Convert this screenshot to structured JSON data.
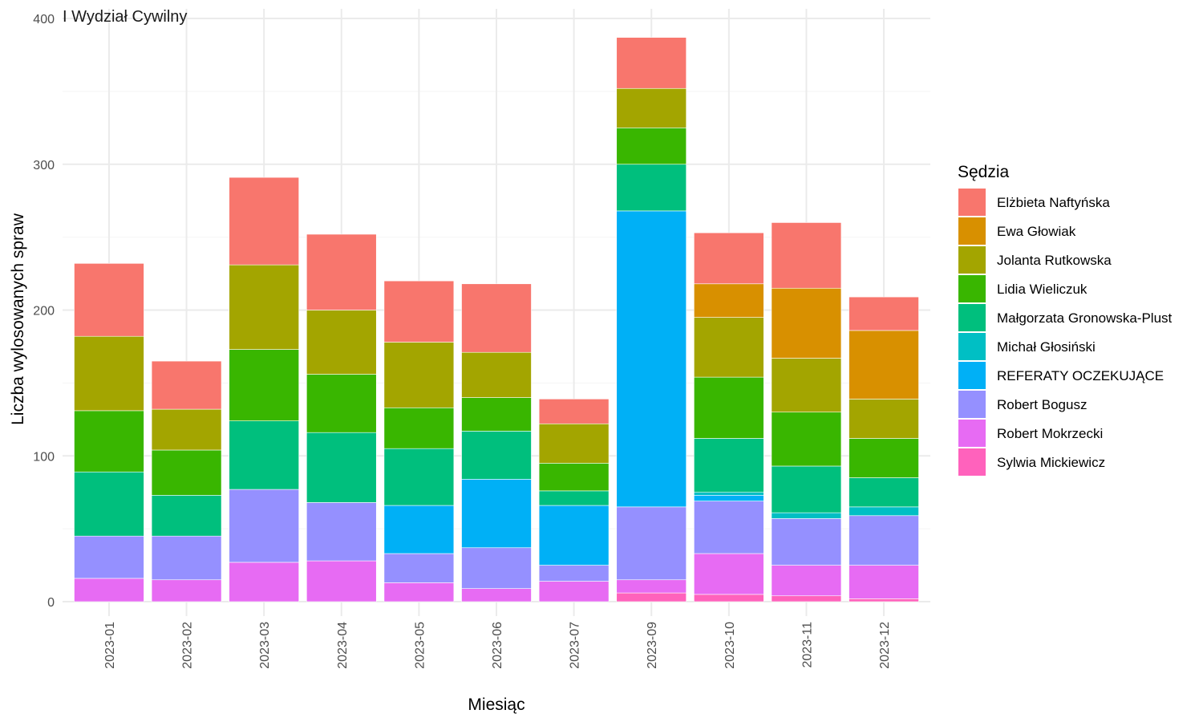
{
  "chart_data": {
    "type": "bar",
    "stacked": true,
    "title": "I Wydział Cywilny",
    "xlabel": "Miesiąc",
    "ylabel": "Liczba wylosowanych spraw",
    "ylim": [
      0,
      400
    ],
    "yticks": [
      0,
      100,
      200,
      300,
      400
    ],
    "grid": true,
    "legend_position": "right",
    "legend_title": "Sędzia",
    "categories": [
      "2023-01",
      "2023-02",
      "2023-03",
      "2023-04",
      "2023-05",
      "2023-06",
      "2023-07",
      "2023-09",
      "2023-10",
      "2023-11",
      "2023-12"
    ],
    "series": [
      {
        "name": "Elżbieta Naftyńska",
        "color": "#F8766D",
        "values": [
          50,
          33,
          60,
          52,
          42,
          47,
          17,
          35,
          35,
          45,
          23
        ]
      },
      {
        "name": "Ewa Głowiak",
        "color": "#D89000",
        "values": [
          0,
          0,
          0,
          0,
          0,
          0,
          0,
          0,
          23,
          48,
          47
        ]
      },
      {
        "name": "Jolanta Rutkowska",
        "color": "#A3A500",
        "values": [
          51,
          28,
          58,
          44,
          45,
          31,
          27,
          27,
          41,
          37,
          27
        ]
      },
      {
        "name": "Lidia Wieliczuk",
        "color": "#39B600",
        "values": [
          42,
          31,
          49,
          40,
          28,
          23,
          19,
          25,
          42,
          37,
          27
        ]
      },
      {
        "name": "Małgorzata Gronowska-Plust",
        "color": "#00BF7D",
        "values": [
          44,
          28,
          47,
          48,
          39,
          33,
          10,
          32,
          37,
          32,
          20
        ]
      },
      {
        "name": "Michał Głosiński",
        "color": "#00BFC4",
        "values": [
          0,
          0,
          0,
          0,
          0,
          0,
          0,
          0,
          2,
          4,
          6
        ]
      },
      {
        "name": "REFERATY OCZEKUJĄCE",
        "color": "#00B0F6",
        "values": [
          0,
          0,
          0,
          0,
          33,
          47,
          41,
          203,
          4,
          0,
          0
        ]
      },
      {
        "name": "Robert Bogusz",
        "color": "#9590FF",
        "values": [
          29,
          30,
          50,
          40,
          20,
          28,
          11,
          50,
          36,
          32,
          34
        ]
      },
      {
        "name": "Robert Mokrzecki",
        "color": "#E76BF3",
        "values": [
          16,
          15,
          27,
          28,
          13,
          9,
          14,
          9,
          28,
          21,
          23
        ]
      },
      {
        "name": "Sylwia Mickiewicz",
        "color": "#FF62BC",
        "values": [
          0,
          0,
          0,
          0,
          0,
          0,
          0,
          6,
          5,
          4,
          2
        ]
      }
    ]
  }
}
